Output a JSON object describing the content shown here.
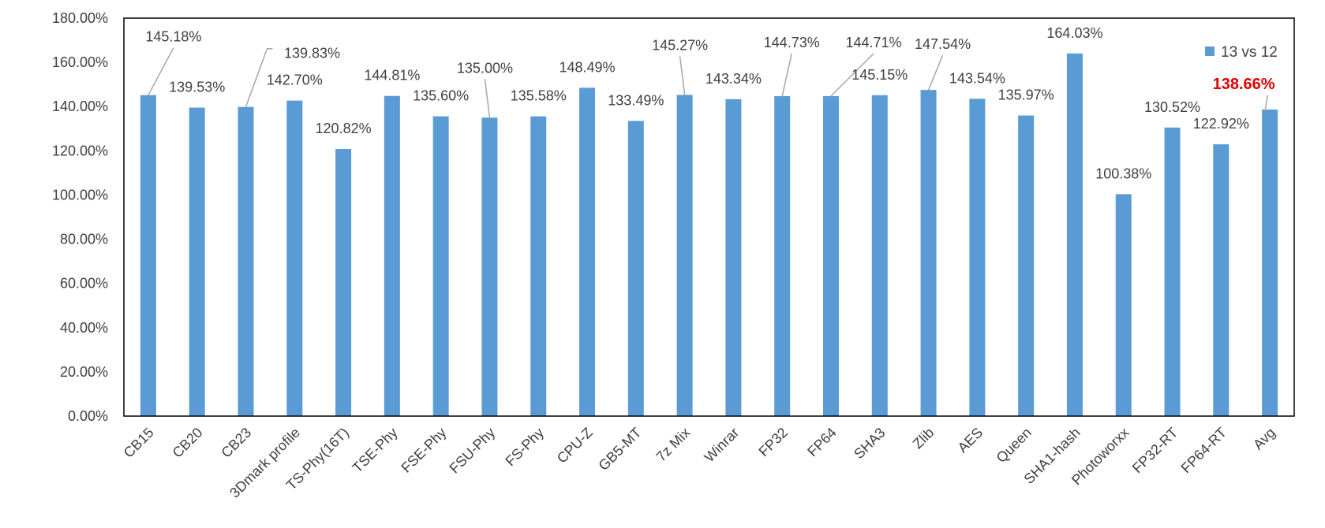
{
  "chart_data": {
    "type": "bar",
    "categories": [
      "CB15",
      "CB20",
      "CB23",
      "3Dmark profile",
      "TS-Phy(16T)",
      "TSE-Phy",
      "FSE-Phy",
      "FSU-Phy",
      "FS-Phy",
      "CPU-Z",
      "GB5-MT",
      "7z Mix",
      "Winrar",
      "FP32",
      "FP64",
      "SHA3",
      "Zlib",
      "AES",
      "Queen",
      "SHA1-hash",
      "Photoworxx",
      "FP32-RT",
      "FP64-RT",
      "Avg"
    ],
    "series": [
      {
        "name": "13 vs 12",
        "values": [
          145.18,
          139.53,
          139.83,
          142.7,
          120.82,
          144.81,
          135.6,
          135.0,
          135.58,
          148.49,
          133.49,
          145.27,
          143.34,
          144.73,
          144.71,
          145.15,
          147.54,
          143.54,
          135.97,
          164.03,
          100.38,
          130.52,
          122.92,
          138.66
        ],
        "labels": [
          "145.18%",
          "139.53%",
          "139.83%",
          "142.70%",
          "120.82%",
          "144.81%",
          "135.60%",
          "135.00%",
          "135.58%",
          "148.49%",
          "133.49%",
          "145.27%",
          "143.34%",
          "144.73%",
          "144.71%",
          "145.15%",
          "147.54%",
          "143.54%",
          "135.97%",
          "164.03%",
          "100.38%",
          "130.52%",
          "122.92%",
          "138.66%"
        ]
      }
    ],
    "highlight_index": 23,
    "title": "",
    "xlabel": "",
    "ylabel": "",
    "ylim": [
      0,
      180
    ],
    "y_ticks": [
      "0.00%",
      "20.00%",
      "40.00%",
      "60.00%",
      "80.00%",
      "100.00%",
      "120.00%",
      "140.00%",
      "160.00%",
      "180.00%"
    ],
    "grid": false,
    "legend_position": "top-right",
    "colors": {
      "bar": "#5B9BD5",
      "highlight_label": "#E00000",
      "axis": "#000000",
      "leader": "#A6A6A6"
    }
  }
}
